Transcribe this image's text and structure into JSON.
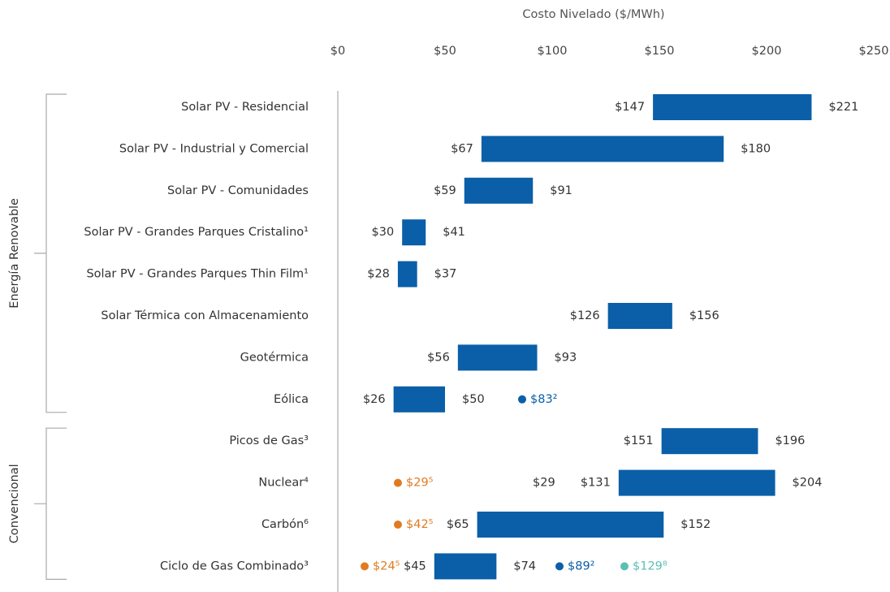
{
  "chart_data": {
    "type": "range-bar",
    "title": "Costo Nivelado ($/MWh)",
    "xlim": [
      0,
      250
    ],
    "xticks": [
      {
        "value": 0,
        "label": "$0"
      },
      {
        "value": 50,
        "label": "$50"
      },
      {
        "value": 100,
        "label": "$100"
      },
      {
        "value": 150,
        "label": "$150"
      },
      {
        "value": 200,
        "label": "$200"
      },
      {
        "value": 250,
        "label": "$250"
      }
    ],
    "color": "#0a5fa8",
    "groups": [
      {
        "name": "Energía Renovable",
        "categories": [
          "Solar PV - Residencial",
          "Solar PV - Industrial y Comercial",
          "Solar PV - Comunidades",
          "Solar PV - Grandes Parques Cristalino¹",
          "Solar PV - Grandes Parques Thin Film¹",
          "Solar Térmica con Almacenamiento",
          "Geotérmica",
          "Eólica"
        ],
        "low": [
          147,
          67,
          59,
          30,
          28,
          126,
          56,
          26
        ],
        "low_labels": [
          "$147",
          "$67",
          "$59",
          "$30",
          "$28",
          "$126",
          "$56",
          "$26"
        ],
        "high": [
          221,
          180,
          91,
          41,
          37,
          156,
          93,
          50
        ],
        "high_labels": [
          "$221",
          "$180",
          "$91",
          "$41",
          "$37",
          "$156",
          "$93",
          "$50"
        ],
        "notes": [
          [],
          [],
          [],
          [],
          [],
          [],
          [],
          [
            {
              "label": "$83²",
              "color": "#0a5fa8"
            }
          ]
        ]
      },
      {
        "name": "Convencional",
        "categories": [
          "Picos de Gas³",
          "Nuclear⁴",
          "Carbón⁶",
          "Ciclo de Gas Combinado³"
        ],
        "low": [
          151,
          131,
          65,
          45
        ],
        "low_labels": [
          "$151",
          "$131",
          "$65",
          "$45"
        ],
        "high": [
          196,
          204,
          152,
          74
        ],
        "high_labels": [
          "$196",
          "$204",
          "$152",
          "$74"
        ],
        "notes": [
          [],
          [
            {
              "label": "$29⁵",
              "color": "#e07b22"
            },
            {
              "label": "$29"
            }
          ],
          [
            {
              "label": "$42⁵",
              "color": "#e07b22"
            }
          ],
          [
            {
              "label": "$24⁵",
              "color": "#e07b22"
            },
            {
              "label": "$89²",
              "color": "#0a5fa8"
            },
            {
              "label": "$129⁸",
              "color": "#5bbfb5"
            }
          ]
        ]
      }
    ]
  }
}
